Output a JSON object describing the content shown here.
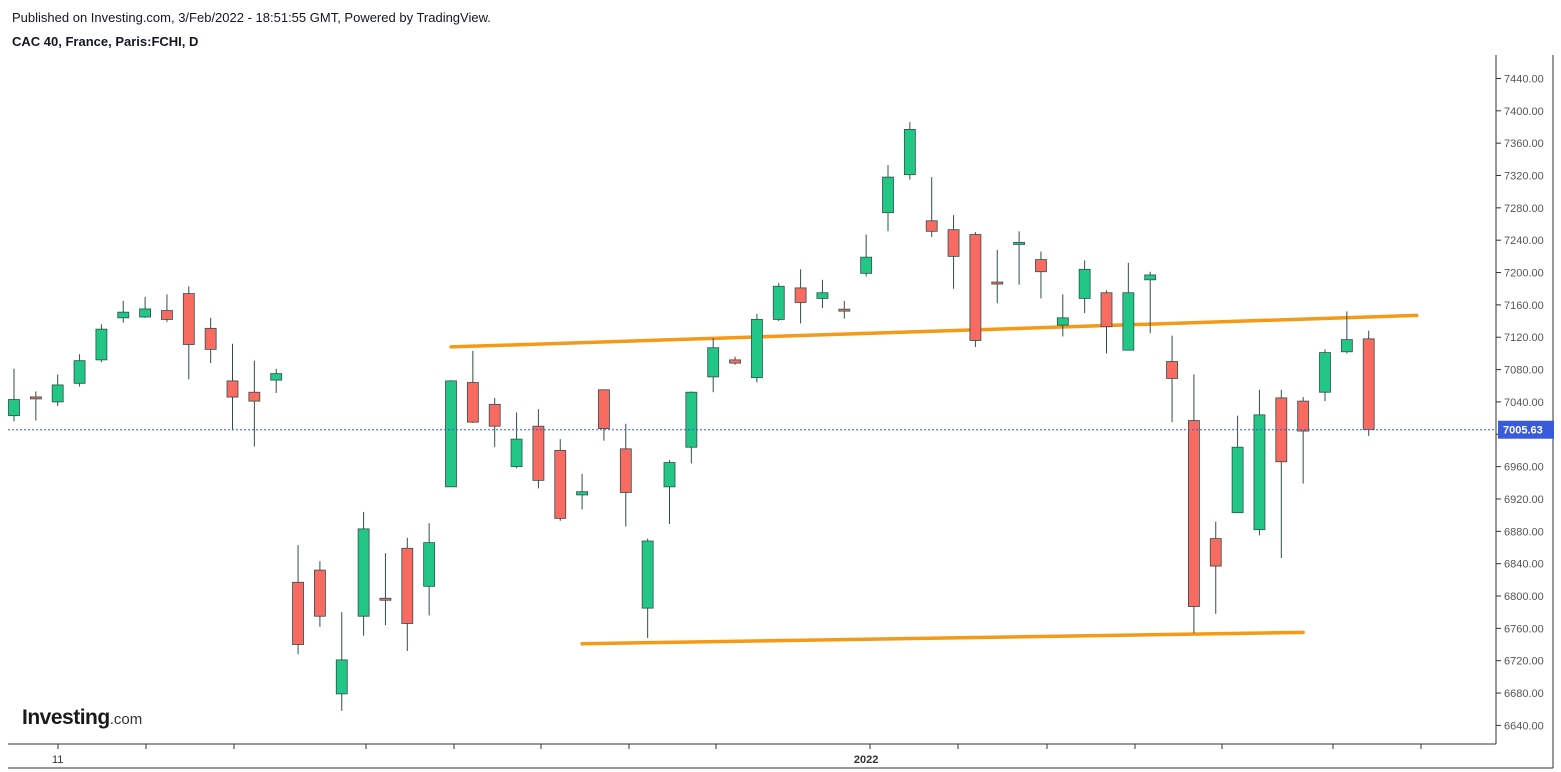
{
  "header": {
    "published": "Published on Investing.com, 3/Feb/2022 - 18:51:55 GMT, Powered by TradingView.",
    "symbol": "CAC 40, France, Paris:FCHI, D"
  },
  "logo": {
    "brand": "Investing",
    "suffix": ".com"
  },
  "chart_data": {
    "type": "candlestick",
    "title": "",
    "ylim": [
      6600,
      7470
    ],
    "y_ticks": [
      6640,
      6680,
      6720,
      6760,
      6800,
      6840,
      6880,
      6920,
      6960,
      7000,
      7040,
      7080,
      7120,
      7160,
      7200,
      7240,
      7280,
      7320,
      7360,
      7400,
      7440
    ],
    "x_labels": [
      {
        "label": "11",
        "index": 2
      },
      {
        "label": "2022",
        "index": 39
      }
    ],
    "last_price": 7005.63,
    "colors": {
      "up": "#22c785",
      "down": "#f96a60",
      "wick": "#2f4f4f",
      "trendline": "#f59a17",
      "price_line": "#3a5bd9"
    },
    "candles": [
      {
        "o": 7023,
        "h": 7081,
        "l": 7016,
        "c": 7043
      },
      {
        "o": 7046,
        "h": 7053,
        "l": 7017,
        "c": 7044
      },
      {
        "o": 7040,
        "h": 7074,
        "l": 7035,
        "c": 7061
      },
      {
        "o": 7063,
        "h": 7099,
        "l": 7059,
        "c": 7091
      },
      {
        "o": 7092,
        "h": 7136,
        "l": 7089,
        "c": 7130
      },
      {
        "o": 7144,
        "h": 7165,
        "l": 7138,
        "c": 7151
      },
      {
        "o": 7145,
        "h": 7170,
        "l": 7144,
        "c": 7155
      },
      {
        "o": 7153,
        "h": 7173,
        "l": 7139,
        "c": 7142
      },
      {
        "o": 7174,
        "h": 7183,
        "l": 7068,
        "c": 7111
      },
      {
        "o": 7131,
        "h": 7144,
        "l": 7088,
        "c": 7105
      },
      {
        "o": 7066,
        "h": 7112,
        "l": 7005,
        "c": 7046
      },
      {
        "o": 7052,
        "h": 7091,
        "l": 6985,
        "c": 7041
      },
      {
        "o": 7067,
        "h": 7081,
        "l": 7051,
        "c": 7075
      },
      {
        "o": 6817,
        "h": 6863,
        "l": 6728,
        "c": 6740
      },
      {
        "o": 6832,
        "h": 6843,
        "l": 6762,
        "c": 6775
      },
      {
        "o": 6679,
        "h": 6780,
        "l": 6658,
        "c": 6721
      },
      {
        "o": 6775,
        "h": 6904,
        "l": 6751,
        "c": 6883
      },
      {
        "o": 6797,
        "h": 6853,
        "l": 6764,
        "c": 6795
      },
      {
        "o": 6859,
        "h": 6872,
        "l": 6732,
        "c": 6766
      },
      {
        "o": 6812,
        "h": 6890,
        "l": 6776,
        "c": 6866
      },
      {
        "o": 6935,
        "h": 7067,
        "l": 6935,
        "c": 7066
      },
      {
        "o": 7064,
        "h": 7103,
        "l": 7014,
        "c": 7015
      },
      {
        "o": 7037,
        "h": 7045,
        "l": 6984,
        "c": 7010
      },
      {
        "o": 6960,
        "h": 7027,
        "l": 6958,
        "c": 6994
      },
      {
        "o": 7010,
        "h": 7031,
        "l": 6933,
        "c": 6943
      },
      {
        "o": 6980,
        "h": 6994,
        "l": 6893,
        "c": 6896
      },
      {
        "o": 6925,
        "h": 6951,
        "l": 6907,
        "c": 6929
      },
      {
        "o": 7055,
        "h": 7055,
        "l": 6992,
        "c": 7007
      },
      {
        "o": 6982,
        "h": 7013,
        "l": 6886,
        "c": 6928
      },
      {
        "o": 6785,
        "h": 6871,
        "l": 6748,
        "c": 6868
      },
      {
        "o": 6935,
        "h": 6968,
        "l": 6889,
        "c": 6965
      },
      {
        "o": 6984,
        "h": 7053,
        "l": 6964,
        "c": 7052
      },
      {
        "o": 7071,
        "h": 7119,
        "l": 7052,
        "c": 7107
      },
      {
        "o": 7092,
        "h": 7096,
        "l": 7086,
        "c": 7088
      },
      {
        "o": 7070,
        "h": 7149,
        "l": 7064,
        "c": 7142
      },
      {
        "o": 7142,
        "h": 7187,
        "l": 7140,
        "c": 7183
      },
      {
        "o": 7181,
        "h": 7204,
        "l": 7137,
        "c": 7163
      },
      {
        "o": 7168,
        "h": 7191,
        "l": 7156,
        "c": 7175
      },
      {
        "o": 7154,
        "h": 7165,
        "l": 7143,
        "c": 7153
      },
      {
        "o": 7199,
        "h": 7247,
        "l": 7195,
        "c": 7219
      },
      {
        "o": 7274,
        "h": 7333,
        "l": 7251,
        "c": 7318
      },
      {
        "o": 7321,
        "h": 7386,
        "l": 7315,
        "c": 7377
      },
      {
        "o": 7264,
        "h": 7318,
        "l": 7244,
        "c": 7251
      },
      {
        "o": 7253,
        "h": 7271,
        "l": 7180,
        "c": 7220
      },
      {
        "o": 7247,
        "h": 7250,
        "l": 7108,
        "c": 7116
      },
      {
        "o": 7188,
        "h": 7228,
        "l": 7162,
        "c": 7186
      },
      {
        "o": 7236,
        "h": 7251,
        "l": 7185,
        "c": 7236
      },
      {
        "o": 7216,
        "h": 7226,
        "l": 7168,
        "c": 7201
      },
      {
        "o": 7135,
        "h": 7173,
        "l": 7121,
        "c": 7144
      },
      {
        "o": 7168,
        "h": 7215,
        "l": 7150,
        "c": 7204
      },
      {
        "o": 7175,
        "h": 7178,
        "l": 7100,
        "c": 7133
      },
      {
        "o": 7104,
        "h": 7212,
        "l": 7104,
        "c": 7175
      },
      {
        "o": 7191,
        "h": 7201,
        "l": 7125,
        "c": 7197
      },
      {
        "o": 7090,
        "h": 7122,
        "l": 7015,
        "c": 7069
      },
      {
        "o": 7017,
        "h": 7074,
        "l": 6754,
        "c": 6787
      },
      {
        "o": 6871,
        "h": 6892,
        "l": 6778,
        "c": 6837
      },
      {
        "o": 6903,
        "h": 7023,
        "l": 6903,
        "c": 6984
      },
      {
        "o": 6882,
        "h": 7055,
        "l": 6875,
        "c": 7024
      },
      {
        "o": 7045,
        "h": 7055,
        "l": 6847,
        "c": 6966
      },
      {
        "o": 7041,
        "h": 7046,
        "l": 6939,
        "c": 7004
      },
      {
        "o": 7052,
        "h": 7105,
        "l": 7041,
        "c": 7101
      },
      {
        "o": 7102,
        "h": 7152,
        "l": 7100,
        "c": 7117
      },
      {
        "o": 7118,
        "h": 7128,
        "l": 6998,
        "c": 7006
      }
    ],
    "trendlines": [
      {
        "from": {
          "index": 20.0,
          "price": 7108
        },
        "to": {
          "index": 64.2,
          "price": 7147
        }
      },
      {
        "from": {
          "index": 26.0,
          "price": 6741
        },
        "to": {
          "index": 59.0,
          "price": 6755
        }
      }
    ]
  }
}
